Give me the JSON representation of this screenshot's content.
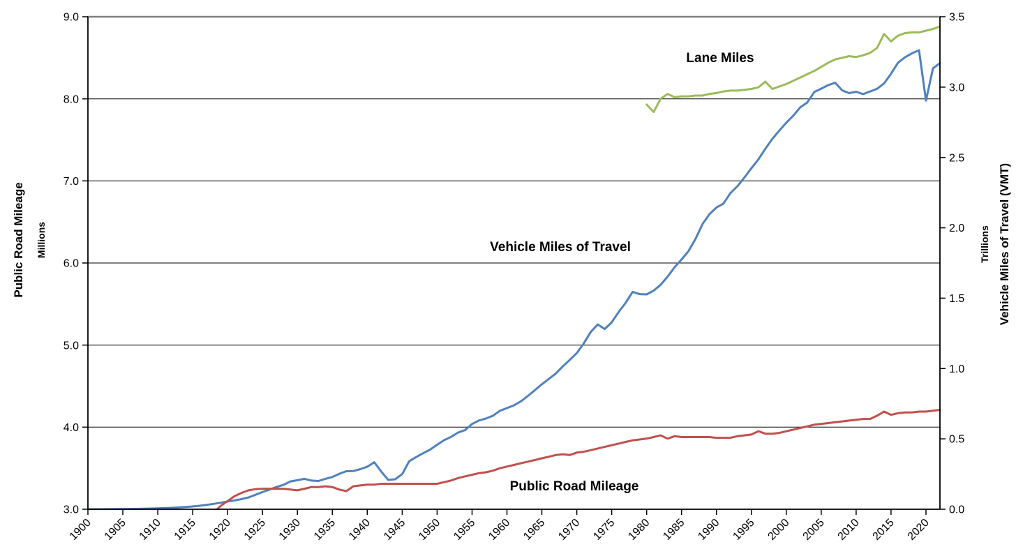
{
  "background": "#FFFFFF",
  "chart_data": {
    "type": "line",
    "legend": "none",
    "grid": {
      "horizontal": true,
      "vertical": false,
      "gridline_color": "#000000",
      "top_border_color": "#7F7F7F"
    },
    "x_axis": {
      "min": 1900,
      "max": 2022,
      "tick_step": 5,
      "tick_labels": [
        "1900",
        "1905",
        "1910",
        "1915",
        "1920",
        "1925",
        "1930",
        "1935",
        "1940",
        "1945",
        "1950",
        "1955",
        "1960",
        "1965",
        "1970",
        "1975",
        "1980",
        "1985",
        "1990",
        "1995",
        "2000",
        "2005",
        "2010",
        "2015",
        "2020"
      ]
    },
    "y_left": {
      "label": "Public Road Mileage",
      "sublabel": "Millions",
      "min": 3.0,
      "max": 9.0,
      "ticks": [
        "3.0",
        "4.0",
        "5.0",
        "6.0",
        "7.0",
        "8.0",
        "9.0"
      ]
    },
    "y_right": {
      "label": "Vehicle Miles of Travel (VMT)",
      "sublabel": "Trillions",
      "min": 0.0,
      "max": 3.5,
      "ticks": [
        "0.0",
        "0.5",
        "1.0",
        "1.5",
        "2.0",
        "2.5",
        "3.0",
        "3.5"
      ]
    },
    "annotations": [
      {
        "text": "Lane Miles"
      },
      {
        "text": "Vehicle Miles of Travel"
      },
      {
        "text": "Public Road Mileage"
      }
    ],
    "series": [
      {
        "id": "vehicle-miles-of-travel",
        "name": "Vehicle Miles of Travel",
        "axis": "right",
        "units": "trillions of miles",
        "color": "#4F81BD",
        "points": [
          [
            1900,
            0.0
          ],
          [
            1902,
            0.0
          ],
          [
            1904,
            0.001
          ],
          [
            1906,
            0.002
          ],
          [
            1908,
            0.004
          ],
          [
            1910,
            0.006
          ],
          [
            1911,
            0.008
          ],
          [
            1912,
            0.01
          ],
          [
            1913,
            0.013
          ],
          [
            1914,
            0.016
          ],
          [
            1915,
            0.02
          ],
          [
            1916,
            0.025
          ],
          [
            1917,
            0.031
          ],
          [
            1918,
            0.038
          ],
          [
            1919,
            0.046
          ],
          [
            1920,
            0.055
          ],
          [
            1921,
            0.063
          ],
          [
            1922,
            0.072
          ],
          [
            1923,
            0.084
          ],
          [
            1924,
            0.103
          ],
          [
            1925,
            0.122
          ],
          [
            1926,
            0.14
          ],
          [
            1927,
            0.158
          ],
          [
            1928,
            0.173
          ],
          [
            1929,
            0.198
          ],
          [
            1930,
            0.206
          ],
          [
            1931,
            0.216
          ],
          [
            1932,
            0.204
          ],
          [
            1933,
            0.201
          ],
          [
            1934,
            0.216
          ],
          [
            1935,
            0.229
          ],
          [
            1936,
            0.252
          ],
          [
            1937,
            0.27
          ],
          [
            1938,
            0.271
          ],
          [
            1939,
            0.285
          ],
          [
            1940,
            0.302
          ],
          [
            1941,
            0.334
          ],
          [
            1942,
            0.268
          ],
          [
            1943,
            0.208
          ],
          [
            1944,
            0.213
          ],
          [
            1945,
            0.25
          ],
          [
            1946,
            0.341
          ],
          [
            1947,
            0.371
          ],
          [
            1948,
            0.398
          ],
          [
            1949,
            0.424
          ],
          [
            1950,
            0.458
          ],
          [
            1951,
            0.491
          ],
          [
            1952,
            0.514
          ],
          [
            1953,
            0.545
          ],
          [
            1954,
            0.562
          ],
          [
            1955,
            0.606
          ],
          [
            1956,
            0.631
          ],
          [
            1957,
            0.645
          ],
          [
            1958,
            0.665
          ],
          [
            1959,
            0.7
          ],
          [
            1960,
            0.719
          ],
          [
            1961,
            0.738
          ],
          [
            1962,
            0.767
          ],
          [
            1963,
            0.805
          ],
          [
            1964,
            0.846
          ],
          [
            1965,
            0.888
          ],
          [
            1966,
            0.926
          ],
          [
            1967,
            0.964
          ],
          [
            1968,
            1.016
          ],
          [
            1969,
            1.062
          ],
          [
            1970,
            1.11
          ],
          [
            1971,
            1.179
          ],
          [
            1972,
            1.26
          ],
          [
            1973,
            1.313
          ],
          [
            1974,
            1.281
          ],
          [
            1975,
            1.328
          ],
          [
            1976,
            1.402
          ],
          [
            1977,
            1.467
          ],
          [
            1978,
            1.545
          ],
          [
            1979,
            1.529
          ],
          [
            1980,
            1.527
          ],
          [
            1981,
            1.553
          ],
          [
            1982,
            1.595
          ],
          [
            1983,
            1.653
          ],
          [
            1984,
            1.72
          ],
          [
            1985,
            1.775
          ],
          [
            1986,
            1.835
          ],
          [
            1987,
            1.921
          ],
          [
            1988,
            2.026
          ],
          [
            1989,
            2.097
          ],
          [
            1990,
            2.144
          ],
          [
            1991,
            2.172
          ],
          [
            1992,
            2.247
          ],
          [
            1993,
            2.296
          ],
          [
            1994,
            2.358
          ],
          [
            1995,
            2.423
          ],
          [
            1996,
            2.486
          ],
          [
            1997,
            2.562
          ],
          [
            1998,
            2.632
          ],
          [
            1999,
            2.691
          ],
          [
            2000,
            2.747
          ],
          [
            2001,
            2.797
          ],
          [
            2002,
            2.856
          ],
          [
            2003,
            2.89
          ],
          [
            2004,
            2.965
          ],
          [
            2005,
            2.989
          ],
          [
            2006,
            3.014
          ],
          [
            2007,
            3.031
          ],
          [
            2008,
            2.977
          ],
          [
            2009,
            2.957
          ],
          [
            2010,
            2.967
          ],
          [
            2011,
            2.95
          ],
          [
            2012,
            2.969
          ],
          [
            2013,
            2.988
          ],
          [
            2014,
            3.026
          ],
          [
            2015,
            3.095
          ],
          [
            2016,
            3.174
          ],
          [
            2017,
            3.212
          ],
          [
            2018,
            3.24
          ],
          [
            2019,
            3.262
          ],
          [
            2020,
            2.904
          ],
          [
            2021,
            3.133
          ],
          [
            2022,
            3.17
          ]
        ]
      },
      {
        "id": "public-road-mileage",
        "name": "Public Road Mileage",
        "axis": "left",
        "units": "millions of miles",
        "color": "#C0504D",
        "points": [
          [
            1918,
            2.96
          ],
          [
            1919,
            3.04
          ],
          [
            1920,
            3.1
          ],
          [
            1921,
            3.16
          ],
          [
            1922,
            3.2
          ],
          [
            1923,
            3.23
          ],
          [
            1924,
            3.245
          ],
          [
            1925,
            3.25
          ],
          [
            1926,
            3.25
          ],
          [
            1927,
            3.25
          ],
          [
            1928,
            3.25
          ],
          [
            1929,
            3.24
          ],
          [
            1930,
            3.23
          ],
          [
            1931,
            3.25
          ],
          [
            1932,
            3.27
          ],
          [
            1933,
            3.27
          ],
          [
            1934,
            3.28
          ],
          [
            1935,
            3.27
          ],
          [
            1936,
            3.24
          ],
          [
            1937,
            3.22
          ],
          [
            1938,
            3.28
          ],
          [
            1939,
            3.29
          ],
          [
            1940,
            3.3
          ],
          [
            1941,
            3.3
          ],
          [
            1942,
            3.31
          ],
          [
            1943,
            3.31
          ],
          [
            1944,
            3.31
          ],
          [
            1945,
            3.31
          ],
          [
            1946,
            3.31
          ],
          [
            1947,
            3.31
          ],
          [
            1948,
            3.31
          ],
          [
            1949,
            3.31
          ],
          [
            1950,
            3.31
          ],
          [
            1951,
            3.33
          ],
          [
            1952,
            3.35
          ],
          [
            1953,
            3.38
          ],
          [
            1954,
            3.4
          ],
          [
            1955,
            3.42
          ],
          [
            1956,
            3.44
          ],
          [
            1957,
            3.45
          ],
          [
            1958,
            3.47
          ],
          [
            1959,
            3.5
          ],
          [
            1960,
            3.52
          ],
          [
            1961,
            3.54
          ],
          [
            1962,
            3.56
          ],
          [
            1963,
            3.58
          ],
          [
            1964,
            3.6
          ],
          [
            1965,
            3.62
          ],
          [
            1966,
            3.64
          ],
          [
            1967,
            3.66
          ],
          [
            1968,
            3.67
          ],
          [
            1969,
            3.66
          ],
          [
            1970,
            3.69
          ],
          [
            1971,
            3.7
          ],
          [
            1972,
            3.72
          ],
          [
            1973,
            3.74
          ],
          [
            1974,
            3.76
          ],
          [
            1975,
            3.78
          ],
          [
            1976,
            3.8
          ],
          [
            1977,
            3.82
          ],
          [
            1978,
            3.84
          ],
          [
            1979,
            3.85
          ],
          [
            1980,
            3.86
          ],
          [
            1981,
            3.88
          ],
          [
            1982,
            3.9
          ],
          [
            1983,
            3.86
          ],
          [
            1984,
            3.89
          ],
          [
            1985,
            3.88
          ],
          [
            1986,
            3.88
          ],
          [
            1987,
            3.88
          ],
          [
            1988,
            3.88
          ],
          [
            1989,
            3.88
          ],
          [
            1990,
            3.87
          ],
          [
            1991,
            3.87
          ],
          [
            1992,
            3.87
          ],
          [
            1993,
            3.89
          ],
          [
            1994,
            3.9
          ],
          [
            1995,
            3.91
          ],
          [
            1996,
            3.95
          ],
          [
            1997,
            3.92
          ],
          [
            1998,
            3.92
          ],
          [
            1999,
            3.93
          ],
          [
            2000,
            3.95
          ],
          [
            2001,
            3.97
          ],
          [
            2002,
            3.99
          ],
          [
            2003,
            4.01
          ],
          [
            2004,
            4.03
          ],
          [
            2005,
            4.04
          ],
          [
            2006,
            4.05
          ],
          [
            2007,
            4.06
          ],
          [
            2008,
            4.07
          ],
          [
            2009,
            4.08
          ],
          [
            2010,
            4.09
          ],
          [
            2011,
            4.1
          ],
          [
            2012,
            4.1
          ],
          [
            2013,
            4.14
          ],
          [
            2014,
            4.19
          ],
          [
            2015,
            4.15
          ],
          [
            2016,
            4.17
          ],
          [
            2017,
            4.18
          ],
          [
            2018,
            4.18
          ],
          [
            2019,
            4.19
          ],
          [
            2020,
            4.19
          ],
          [
            2021,
            4.2
          ],
          [
            2022,
            4.21
          ]
        ]
      },
      {
        "id": "lane-miles",
        "name": "Lane Miles",
        "axis": "left",
        "units": "millions of miles",
        "color": "#9BBB59",
        "points": [
          [
            1980,
            7.93
          ],
          [
            1981,
            7.84
          ],
          [
            1982,
            8.0
          ],
          [
            1983,
            8.06
          ],
          [
            1984,
            8.02
          ],
          [
            1985,
            8.03
          ],
          [
            1986,
            8.03
          ],
          [
            1987,
            8.04
          ],
          [
            1988,
            8.04
          ],
          [
            1989,
            8.06
          ],
          [
            1990,
            8.07
          ],
          [
            1991,
            8.09
          ],
          [
            1992,
            8.1
          ],
          [
            1993,
            8.1
          ],
          [
            1994,
            8.11
          ],
          [
            1995,
            8.12
          ],
          [
            1996,
            8.14
          ],
          [
            1997,
            8.21
          ],
          [
            1998,
            8.12
          ],
          [
            1999,
            8.15
          ],
          [
            2000,
            8.18
          ],
          [
            2001,
            8.22
          ],
          [
            2002,
            8.26
          ],
          [
            2003,
            8.3
          ],
          [
            2004,
            8.34
          ],
          [
            2005,
            8.39
          ],
          [
            2006,
            8.44
          ],
          [
            2007,
            8.48
          ],
          [
            2008,
            8.5
          ],
          [
            2009,
            8.52
          ],
          [
            2010,
            8.51
          ],
          [
            2011,
            8.53
          ],
          [
            2012,
            8.56
          ],
          [
            2013,
            8.62
          ],
          [
            2014,
            8.79
          ],
          [
            2015,
            8.7
          ],
          [
            2016,
            8.77
          ],
          [
            2017,
            8.8
          ],
          [
            2018,
            8.81
          ],
          [
            2019,
            8.81
          ],
          [
            2020,
            8.83
          ],
          [
            2021,
            8.85
          ],
          [
            2022,
            8.88
          ]
        ]
      }
    ]
  }
}
